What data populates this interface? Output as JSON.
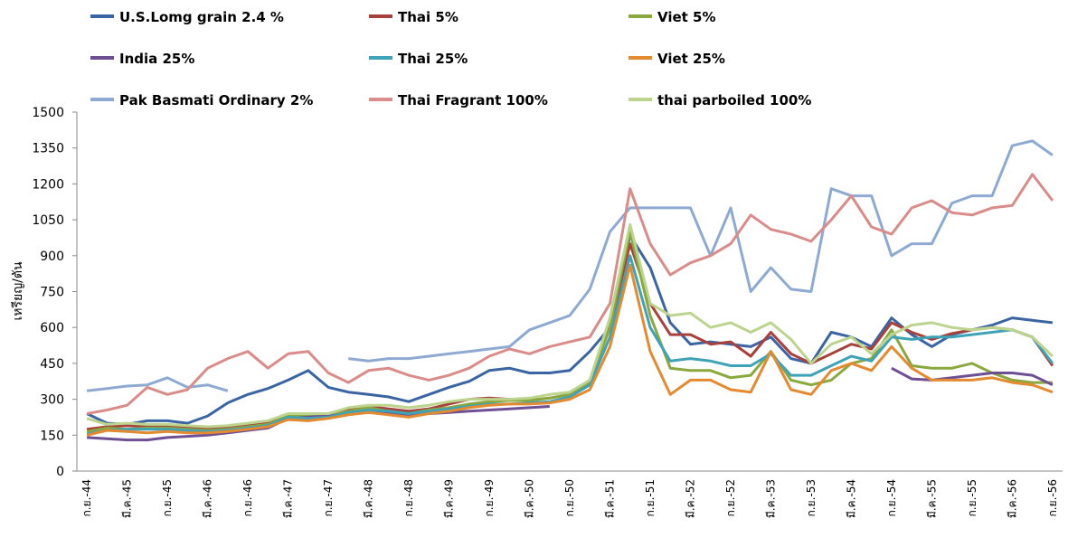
{
  "chart_data": {
    "type": "line",
    "y_label": "เหรียญ/ตัน",
    "categories": [
      "ก.ย.-44",
      null,
      "มี.ค.-45",
      null,
      "ก.ย.-45",
      null,
      "มี.ค.-46",
      null,
      "ก.ย.-46",
      null,
      "มี.ค.-47",
      null,
      "ก.ย.-47",
      null,
      "มี.ค.-48",
      null,
      "ก.ย.-48",
      null,
      "มี.ค.-49",
      null,
      "ก.ย.-49",
      null,
      "มี.ค.-50",
      null,
      "ก.ย.-50",
      null,
      "มี.ค.-51",
      null,
      "ก.ย.-51",
      null,
      "มี.ค.-52",
      null,
      "ก.ย.-52",
      null,
      "มี.ค.-53",
      null,
      "ก.ย.-53",
      null,
      "มี.ค.-54",
      null,
      "ก.ย.-54",
      null,
      "มี.ค.-55",
      null,
      "ก.ย.-55",
      null,
      "มี.ค.-56",
      null,
      "ก.ย.-56"
    ],
    "ylim": [
      0,
      1500
    ],
    "yticks": [
      0,
      150,
      300,
      450,
      600,
      750,
      900,
      1050,
      1200,
      1350,
      1500
    ],
    "grid": false,
    "series": [
      {
        "name": "U.S.Lomg grain 2.4 %",
        "color": "#3b64a3",
        "values": [
          240,
          200,
          195,
          210,
          210,
          200,
          230,
          285,
          320,
          345,
          380,
          420,
          350,
          330,
          320,
          310,
          290,
          320,
          350,
          375,
          420,
          430,
          410,
          410,
          420,
          500,
          600,
          985,
          850,
          620,
          530,
          540,
          530,
          520,
          560,
          470,
          450,
          580,
          560,
          520,
          640,
          570,
          520,
          570,
          590,
          610,
          640,
          630,
          620
        ]
      },
      {
        "name": "Thai 5%",
        "color": "#a8403c",
        "values": [
          175,
          185,
          190,
          185,
          185,
          180,
          175,
          180,
          190,
          200,
          230,
          225,
          235,
          255,
          270,
          260,
          250,
          260,
          280,
          300,
          305,
          300,
          295,
          305,
          320,
          380,
          600,
          950,
          700,
          570,
          570,
          530,
          540,
          480,
          580,
          490,
          450,
          490,
          530,
          510,
          620,
          580,
          550,
          575,
          590,
          600,
          590,
          560,
          440
        ]
      },
      {
        "name": "Viet 5%",
        "color": "#8aa83e",
        "values": [
          165,
          180,
          175,
          180,
          180,
          175,
          170,
          175,
          185,
          195,
          230,
          230,
          230,
          250,
          265,
          250,
          240,
          255,
          265,
          280,
          290,
          295,
          295,
          305,
          320,
          370,
          600,
          1000,
          650,
          430,
          420,
          420,
          390,
          400,
          500,
          380,
          360,
          380,
          450,
          470,
          590,
          440,
          430,
          430,
          450,
          410,
          380,
          370,
          370
        ]
      },
      {
        "name": "India 25%",
        "color": "#6f4f94",
        "values": [
          140,
          135,
          130,
          130,
          140,
          145,
          150,
          160,
          170,
          180,
          220,
          225,
          230,
          240,
          245,
          240,
          235,
          240,
          245,
          250,
          255,
          260,
          265,
          270,
          null,
          null,
          null,
          null,
          null,
          null,
          null,
          null,
          null,
          null,
          null,
          null,
          null,
          null,
          null,
          null,
          430,
          385,
          380,
          390,
          400,
          410,
          410,
          400,
          360
        ]
      },
      {
        "name": "Thai 25%",
        "color": "#3fa3b8",
        "values": [
          155,
          170,
          175,
          175,
          175,
          170,
          165,
          170,
          180,
          190,
          225,
          220,
          225,
          245,
          255,
          250,
          240,
          250,
          260,
          270,
          280,
          280,
          285,
          290,
          310,
          360,
          560,
          900,
          600,
          460,
          470,
          460,
          440,
          440,
          490,
          400,
          400,
          440,
          480,
          460,
          560,
          550,
          560,
          560,
          570,
          580,
          590,
          560,
          450
        ]
      },
      {
        "name": "Viet 25%",
        "color": "#e48a30",
        "values": [
          150,
          170,
          165,
          160,
          165,
          160,
          160,
          165,
          175,
          185,
          215,
          210,
          220,
          235,
          245,
          235,
          225,
          240,
          250,
          265,
          275,
          280,
          280,
          285,
          300,
          340,
          520,
          860,
          500,
          320,
          380,
          380,
          340,
          330,
          500,
          340,
          320,
          420,
          450,
          420,
          520,
          430,
          380,
          380,
          380,
          390,
          370,
          360,
          330
        ]
      },
      {
        "name": "Pak Basmati Ordinary 2%",
        "color": "#8eaad2",
        "values": [
          335,
          345,
          355,
          360,
          390,
          350,
          360,
          335,
          null,
          null,
          null,
          null,
          null,
          470,
          460,
          470,
          470,
          480,
          490,
          500,
          510,
          520,
          590,
          620,
          650,
          760,
          1000,
          1100,
          1100,
          1100,
          1100,
          900,
          1100,
          750,
          850,
          760,
          750,
          1180,
          1150,
          1150,
          900,
          950,
          950,
          1120,
          1150,
          1150,
          1360,
          1380,
          1320
        ]
      },
      {
        "name": "Thai Fragrant 100%",
        "color": "#d98c8a",
        "values": [
          240,
          255,
          275,
          350,
          320,
          340,
          430,
          470,
          500,
          430,
          490,
          500,
          410,
          370,
          420,
          430,
          400,
          380,
          400,
          430,
          480,
          510,
          490,
          520,
          540,
          560,
          700,
          1180,
          950,
          820,
          870,
          900,
          950,
          1070,
          1010,
          990,
          960,
          1050,
          1150,
          1020,
          990,
          1100,
          1130,
          1080,
          1070,
          1100,
          1110,
          1240,
          1130
        ]
      },
      {
        "name": "thai parboiled 100%",
        "color": "#bcd48e",
        "values": [
          220,
          195,
          200,
          195,
          195,
          190,
          185,
          190,
          200,
          210,
          240,
          240,
          240,
          265,
          275,
          275,
          265,
          275,
          290,
          300,
          300,
          300,
          305,
          320,
          330,
          380,
          640,
          1030,
          700,
          650,
          660,
          600,
          620,
          580,
          620,
          550,
          450,
          530,
          560,
          490,
          570,
          610,
          620,
          600,
          590,
          600,
          590,
          560,
          480
        ]
      }
    ]
  }
}
